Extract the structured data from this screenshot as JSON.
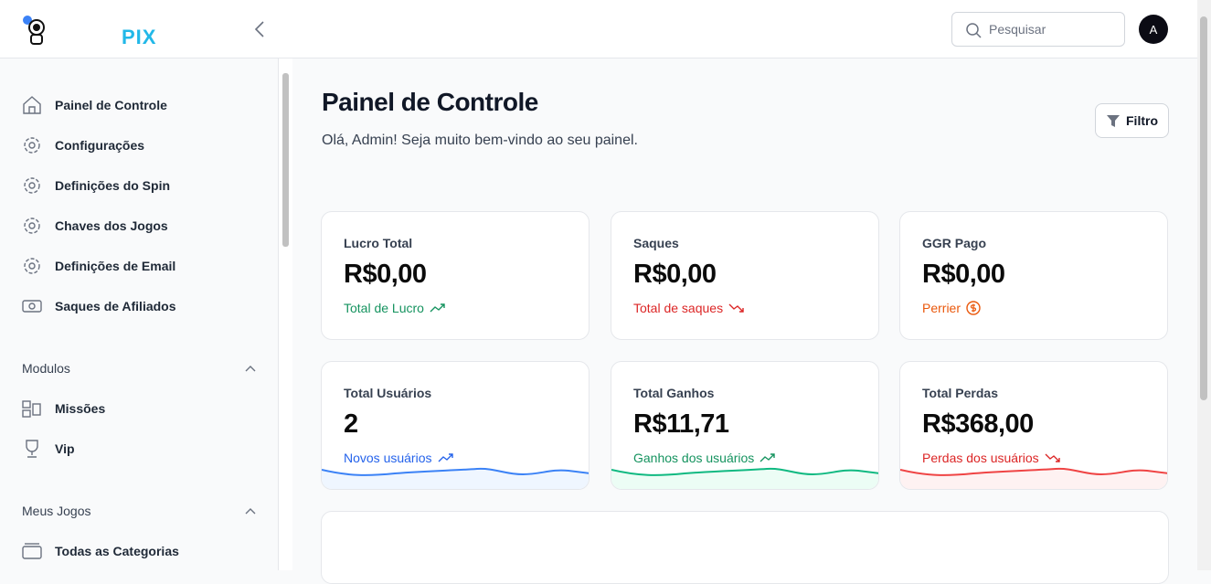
{
  "brand": "PIX",
  "search_placeholder": "Pesquisar",
  "avatar": "A",
  "sidebar": {
    "items": [
      "Painel de Controle",
      "Configurações",
      "Definições do Spin",
      "Chaves dos Jogos",
      "Definições de Email",
      "Saques de Afiliados"
    ],
    "sections": [
      {
        "title": "Modulos",
        "items": [
          "Missões",
          "Vip"
        ]
      },
      {
        "title": "Meus Jogos",
        "items": [
          "Todas as Categorias"
        ]
      }
    ]
  },
  "header": {
    "title": "Painel de Controle",
    "subtitle": "Olá, Admin! Seja muito bem-vindo ao seu painel.",
    "filter": "Filtro"
  },
  "cards": [
    {
      "label": "Lucro Total",
      "value": "R$0,00",
      "note": "Total de Lucro"
    },
    {
      "label": "Saques",
      "value": "R$0,00",
      "note": "Total de saques"
    },
    {
      "label": "GGR Pago",
      "value": "R$0,00",
      "note": "Perrier"
    },
    {
      "label": "Total Usuários",
      "value": "2",
      "note": "Novos usuários"
    },
    {
      "label": "Total Ganhos",
      "value": "R$11,71",
      "note": "Ganhos dos usuários"
    },
    {
      "label": "Total Perdas",
      "value": "R$368,00",
      "note": "Perdas dos usuários"
    }
  ]
}
